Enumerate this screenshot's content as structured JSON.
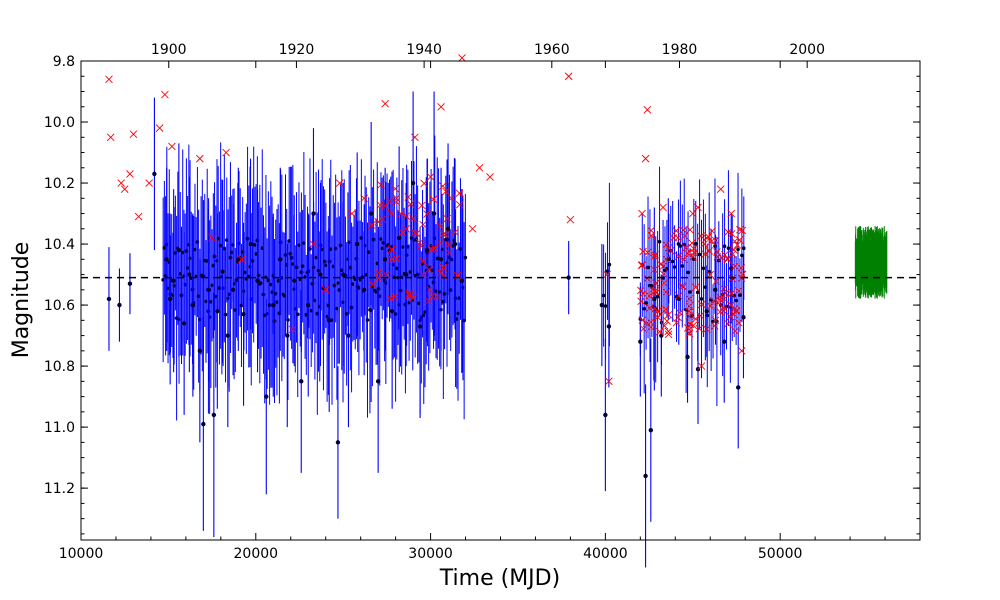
{
  "chart_data": {
    "type": "scatter",
    "title": "",
    "xlabel": "Time (MJD)",
    "ylabel": "Magnitude",
    "xlim": [
      10000,
      58000
    ],
    "ylim": [
      11.37,
      9.8
    ],
    "y_inverted": true,
    "x_ticks": [
      10000,
      20000,
      30000,
      40000,
      50000
    ],
    "x_tick_labels": [
      "10000",
      "20000",
      "30000",
      "40000",
      "50000"
    ],
    "y_ticks": [
      9.8,
      10.0,
      10.2,
      10.4,
      10.6,
      10.8,
      11.0,
      11.2
    ],
    "y_tick_labels": [
      "9.8",
      "10.0",
      "10.2",
      "10.4",
      "10.6",
      "10.8",
      "11.0",
      "11.2"
    ],
    "top_axis": {
      "unit": "year",
      "ticks": [
        1900,
        1920,
        1940,
        1960,
        1980,
        2000
      ],
      "tick_labels": [
        "1900",
        "1920",
        "1940",
        "1960",
        "1980",
        "2000"
      ]
    },
    "reference_line": {
      "y": 10.51,
      "style": "dashed",
      "color": "#000000"
    },
    "grid": false,
    "legend": "none",
    "colors": {
      "errorbar_series": "#0000ff",
      "point_marker": "#000033",
      "cross_series": "#ff0000",
      "modern_series": "#008000"
    },
    "series": [
      {
        "marker": "dot-with-errorbar",
        "x": [
          11600,
          12200,
          12800,
          14200,
          14900,
          15100,
          15300,
          15600,
          15900,
          16200,
          16400,
          16800,
          17000,
          17300,
          17600,
          17800,
          18100,
          18400,
          18700,
          19000,
          19300,
          19700,
          20100,
          20600,
          21000,
          21400,
          21800,
          22200,
          22600,
          23000,
          23300,
          23700,
          24200,
          24700,
          25000,
          25300,
          25800,
          26200,
          26600,
          27000,
          27400,
          27800,
          28200,
          28600,
          29000,
          29400,
          29800,
          30200,
          30600,
          31000,
          31400,
          31800,
          37900,
          39800,
          40000,
          40200,
          42000,
          42300,
          42600,
          42800,
          43200,
          43600,
          44200,
          44700,
          45300,
          45800,
          46300,
          46800,
          47200,
          47600,
          47900
        ],
        "y": [
          10.58,
          10.6,
          10.53,
          10.17,
          10.45,
          10.58,
          10.52,
          10.42,
          10.66,
          10.5,
          10.6,
          10.75,
          10.99,
          10.55,
          10.96,
          10.62,
          10.49,
          10.7,
          10.55,
          10.45,
          10.63,
          10.4,
          10.52,
          10.9,
          10.6,
          10.45,
          10.7,
          10.52,
          10.85,
          10.6,
          10.3,
          10.5,
          10.65,
          11.05,
          10.5,
          10.7,
          10.4,
          10.55,
          10.3,
          10.85,
          10.45,
          10.62,
          10.38,
          10.5,
          10.2,
          10.67,
          10.42,
          10.3,
          10.45,
          10.35,
          10.4,
          10.52,
          10.51,
          10.6,
          10.96,
          10.67,
          10.72,
          11.16,
          11.01,
          10.58,
          10.7,
          10.45,
          10.58,
          10.77,
          10.81,
          10.62,
          10.55,
          10.72,
          10.48,
          10.87,
          10.64
        ],
        "yerr": [
          0.17,
          0.12,
          0.1,
          0.25,
          0.3,
          0.28,
          0.3,
          0.35,
          0.3,
          0.32,
          0.3,
          0.3,
          0.35,
          0.3,
          0.4,
          0.32,
          0.3,
          0.3,
          0.28,
          0.3,
          0.3,
          0.28,
          0.3,
          0.32,
          0.3,
          0.3,
          0.3,
          0.28,
          0.3,
          0.3,
          0.28,
          0.3,
          0.3,
          0.25,
          0.3,
          0.3,
          0.3,
          0.28,
          0.3,
          0.3,
          0.3,
          0.32,
          0.3,
          0.3,
          0.3,
          0.3,
          0.3,
          0.4,
          0.3,
          0.28,
          0.28,
          0.3,
          0.12,
          0.2,
          0.25,
          0.2,
          0.18,
          0.3,
          0.3,
          0.3,
          0.2,
          0.2,
          0.15,
          0.15,
          0.18,
          0.15,
          0.18,
          0.2,
          0.18,
          0.2,
          0.2
        ]
      },
      {
        "marker": "x",
        "x": [
          11600,
          11700,
          12300,
          12500,
          12800,
          13000,
          13300,
          13900,
          14500,
          14800,
          15200,
          16800,
          17500,
          18300,
          19200,
          22100,
          23300,
          24000,
          24800,
          25500,
          26200,
          27400,
          27800,
          28300,
          28600,
          29100,
          29600,
          30000,
          30600,
          31200,
          31800,
          32400,
          32800,
          33400,
          37900,
          38000,
          40100,
          40200,
          42100,
          42300,
          42400,
          42700,
          43000,
          43300,
          43500,
          43900,
          44200,
          44500,
          44800,
          45000,
          45300,
          45500,
          45800,
          46000,
          46300,
          46600,
          46800,
          47000,
          47200,
          47500,
          47800
        ],
        "y": [
          9.86,
          10.05,
          10.2,
          10.22,
          10.17,
          10.04,
          10.31,
          10.2,
          10.02,
          9.91,
          10.08,
          10.12,
          10.38,
          10.1,
          10.45,
          10.68,
          10.4,
          10.55,
          10.2,
          10.3,
          10.25,
          9.94,
          10.45,
          10.3,
          10.35,
          10.05,
          10.5,
          10.18,
          9.95,
          10.25,
          9.79,
          10.35,
          10.15,
          10.18,
          9.85,
          10.32,
          10.5,
          10.85,
          10.3,
          10.12,
          9.96,
          10.55,
          10.62,
          10.28,
          10.45,
          10.38,
          10.57,
          10.45,
          10.62,
          10.3,
          10.28,
          10.8,
          10.38,
          10.5,
          10.65,
          10.22,
          10.58,
          10.45,
          10.3,
          10.62,
          10.75
        ]
      },
      {
        "marker": "dense-errorbar",
        "x_range": [
          54300,
          56100
        ],
        "center": 10.46,
        "spread": 0.12
      }
    ]
  }
}
